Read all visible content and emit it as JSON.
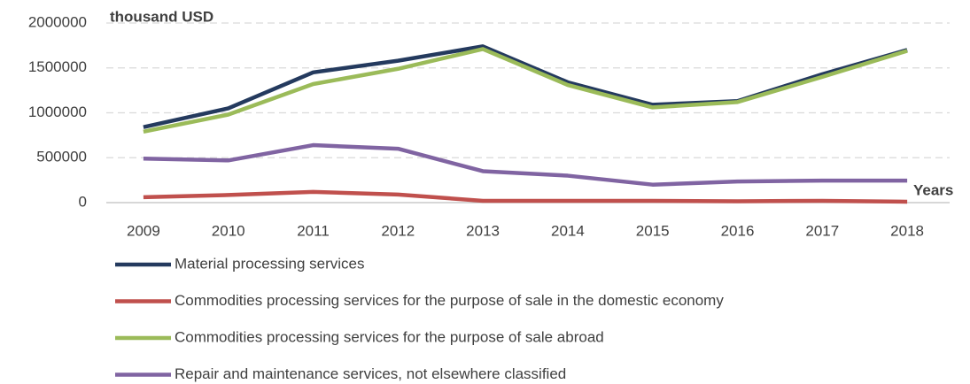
{
  "chart_data": {
    "type": "line",
    "y_axis_label": "thousand USD",
    "x_axis_label": "Years",
    "categories": [
      "2009",
      "2010",
      "2011",
      "2012",
      "2013",
      "2014",
      "2015",
      "2016",
      "2017",
      "2018"
    ],
    "series": [
      {
        "name": "Material processing services",
        "color": "#243a5e",
        "values": [
          840000,
          1050000,
          1450000,
          1580000,
          1740000,
          1340000,
          1090000,
          1130000,
          1430000,
          1700000
        ]
      },
      {
        "name": "Commodities processing services for the purpose of sale in the domestic economy",
        "color": "#c0504d",
        "values": [
          60000,
          85000,
          120000,
          90000,
          20000,
          20000,
          20000,
          15000,
          20000,
          10000
        ]
      },
      {
        "name": "Commodities processing services for the purpose of sale abroad",
        "color": "#9bbb59",
        "values": [
          790000,
          980000,
          1320000,
          1490000,
          1710000,
          1310000,
          1060000,
          1120000,
          1400000,
          1690000
        ]
      },
      {
        "name": "Repair and maintenance services, not elsewhere classified",
        "color": "#8064a2",
        "values": [
          490000,
          470000,
          640000,
          600000,
          350000,
          300000,
          200000,
          235000,
          245000,
          245000
        ]
      }
    ],
    "ylim": [
      0,
      2000000
    ],
    "yticks": [
      0,
      500000,
      1000000,
      1500000,
      2000000
    ],
    "grid": true,
    "legend": "bottom"
  }
}
